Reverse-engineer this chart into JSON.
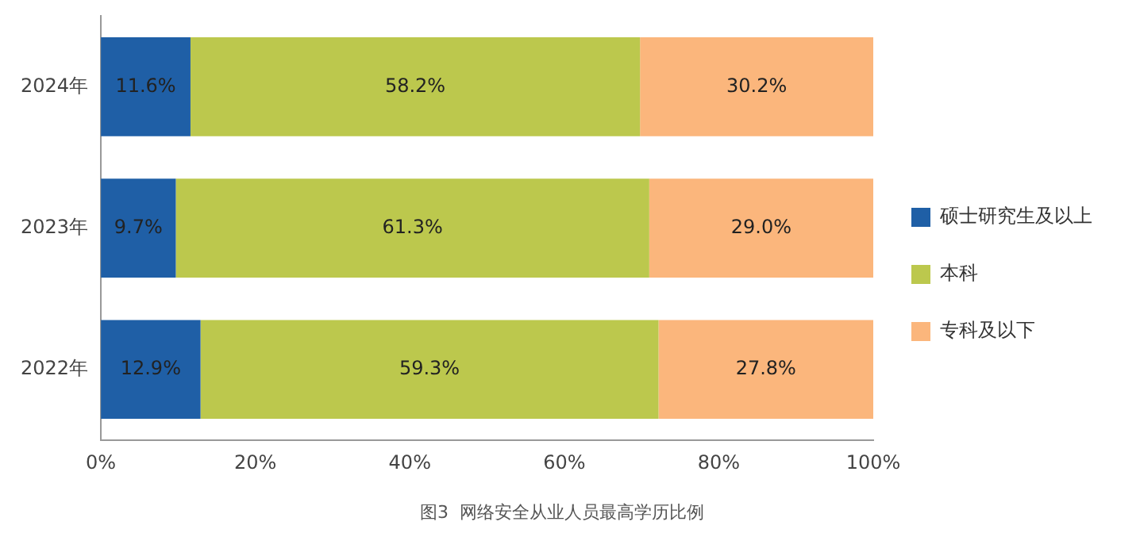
{
  "chart_data": {
    "type": "bar",
    "orientation": "horizontal",
    "stacked": true,
    "title": "图3  网络安全从业人员最高学历比例",
    "categories": [
      "2024年",
      "2023年",
      "2022年"
    ],
    "series": [
      {
        "name": "硕士研究生及以上",
        "color": "#1f5fa6",
        "values": [
          11.6,
          9.7,
          12.9
        ],
        "value_labels": [
          "11.6%",
          "9.7%",
          "12.9%"
        ]
      },
      {
        "name": "本科",
        "color": "#bcc84d",
        "values": [
          58.2,
          61.3,
          59.3
        ],
        "value_labels": [
          "58.2%",
          "61.3%",
          "59.3%"
        ]
      },
      {
        "name": "专科及以下",
        "color": "#fbb67c",
        "values": [
          30.2,
          29.0,
          27.8
        ],
        "value_labels": [
          "30.2%",
          "29.0%",
          "27.8%"
        ]
      }
    ],
    "xlim": [
      0,
      100
    ],
    "xticks": [
      {
        "value": 0,
        "label": "0%"
      },
      {
        "value": 20,
        "label": "20%"
      },
      {
        "value": 40,
        "label": "40%"
      },
      {
        "value": 60,
        "label": "60%"
      },
      {
        "value": 80,
        "label": "80%"
      },
      {
        "value": 100,
        "label": "100%"
      }
    ],
    "grid": false,
    "legend": "right"
  }
}
